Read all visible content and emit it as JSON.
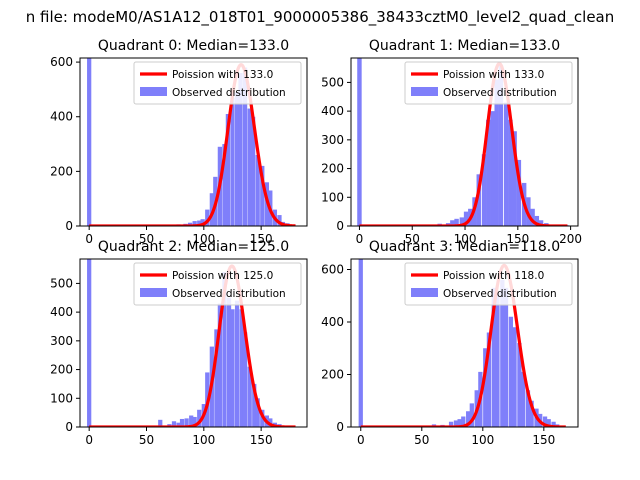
{
  "figure": {
    "title": "n file: modeM0/AS1A12_018T01_9000005386_38433cztM0_level2_quad_clean"
  },
  "colors": {
    "histogram": "#7f7ffa",
    "poisson": "#ff0000",
    "axes": "#000000"
  },
  "chart_data": [
    {
      "type": "bar",
      "title": "Quadrant 0: Median=133.0",
      "median": 133.0,
      "xlim": [
        -8,
        190
      ],
      "ylim": [
        0,
        615
      ],
      "xticks": [
        0,
        50,
        100,
        150
      ],
      "yticks": [
        0,
        200,
        400,
        600
      ],
      "legend": {
        "placement": "top-right",
        "entries": [
          "Poission with 133.0",
          "Observed distribution"
        ]
      },
      "poisson_peak": 590,
      "bin_width": 3.7,
      "bars": [
        [
          0,
          620
        ],
        [
          70,
          4
        ],
        [
          78,
          6
        ],
        [
          84,
          8
        ],
        [
          88,
          12
        ],
        [
          92,
          18
        ],
        [
          96,
          20
        ],
        [
          99,
          25
        ],
        [
          103,
          60
        ],
        [
          107,
          120
        ],
        [
          110,
          180
        ],
        [
          114,
          290
        ],
        [
          118,
          300
        ],
        [
          121,
          410
        ],
        [
          125,
          470
        ],
        [
          129,
          490
        ],
        [
          132,
          560
        ],
        [
          136,
          580
        ],
        [
          140,
          430
        ],
        [
          143,
          400
        ],
        [
          147,
          260
        ],
        [
          151,
          220
        ],
        [
          155,
          160
        ],
        [
          158,
          130
        ],
        [
          162,
          60
        ],
        [
          166,
          40
        ],
        [
          169,
          15
        ],
        [
          173,
          10
        ],
        [
          177,
          4
        ]
      ]
    },
    {
      "type": "bar",
      "title": "Quadrant 1: Median=133.0",
      "median": 133.0,
      "xlim": [
        -8,
        207
      ],
      "ylim": [
        0,
        585
      ],
      "xticks": [
        0,
        50,
        100,
        150,
        200
      ],
      "yticks": [
        0,
        100,
        200,
        300,
        400,
        500
      ],
      "legend": {
        "placement": "top-right",
        "entries": [
          "Poission with 133.0",
          "Observed distribution"
        ]
      },
      "poisson_peak": 565,
      "bin_width": 4.2,
      "bars": [
        [
          0,
          590
        ],
        [
          68,
          5
        ],
        [
          76,
          8
        ],
        [
          84,
          10
        ],
        [
          88,
          20
        ],
        [
          92,
          25
        ],
        [
          97,
          30
        ],
        [
          101,
          50
        ],
        [
          105,
          60
        ],
        [
          109,
          100
        ],
        [
          113,
          180
        ],
        [
          118,
          250
        ],
        [
          122,
          370
        ],
        [
          126,
          400
        ],
        [
          130,
          510
        ],
        [
          134,
          560
        ],
        [
          139,
          430
        ],
        [
          143,
          370
        ],
        [
          147,
          330
        ],
        [
          151,
          230
        ],
        [
          156,
          150
        ],
        [
          160,
          100
        ],
        [
          164,
          60
        ],
        [
          168,
          35
        ],
        [
          172,
          20
        ],
        [
          177,
          10
        ],
        [
          181,
          5
        ],
        [
          189,
          4
        ],
        [
          196,
          3
        ]
      ]
    },
    {
      "type": "bar",
      "title": "Quadrant 2: Median=125.0",
      "median": 125.0,
      "xlim": [
        -8,
        190
      ],
      "ylim": [
        0,
        585
      ],
      "xticks": [
        0,
        50,
        100,
        150
      ],
      "yticks": [
        0,
        100,
        200,
        300,
        400,
        500
      ],
      "legend": {
        "placement": "top-right",
        "entries": [
          "Poission with 125.0",
          "Observed distribution"
        ]
      },
      "poisson_peak": 560,
      "bin_width": 3.7,
      "bars": [
        [
          0,
          590
        ],
        [
          48,
          4
        ],
        [
          55,
          5
        ],
        [
          62,
          25
        ],
        [
          70,
          10
        ],
        [
          74,
          20
        ],
        [
          78,
          15
        ],
        [
          81,
          28
        ],
        [
          85,
          30
        ],
        [
          89,
          40
        ],
        [
          92,
          35
        ],
        [
          96,
          60
        ],
        [
          100,
          80
        ],
        [
          103,
          190
        ],
        [
          107,
          280
        ],
        [
          111,
          340
        ],
        [
          114,
          430
        ],
        [
          118,
          540
        ],
        [
          122,
          450
        ],
        [
          125,
          410
        ],
        [
          129,
          440
        ],
        [
          133,
          410
        ],
        [
          136,
          330
        ],
        [
          140,
          210
        ],
        [
          144,
          150
        ],
        [
          147,
          100
        ],
        [
          151,
          60
        ],
        [
          155,
          40
        ],
        [
          158,
          30
        ],
        [
          162,
          15
        ],
        [
          166,
          10
        ],
        [
          169,
          5
        ]
      ]
    },
    {
      "type": "bar",
      "title": "Quadrant 3: Median=118.0",
      "median": 118.0,
      "xlim": [
        -8,
        178
      ],
      "ylim": [
        0,
        640
      ],
      "xticks": [
        0,
        50,
        100,
        150
      ],
      "yticks": [
        0,
        200,
        400,
        600
      ],
      "legend": {
        "placement": "top-right",
        "entries": [
          "Poission with 118.0",
          "Observed distribution"
        ]
      },
      "poisson_peak": 615,
      "bin_width": 3.5,
      "bars": [
        [
          0,
          640
        ],
        [
          60,
          10
        ],
        [
          67,
          8
        ],
        [
          74,
          20
        ],
        [
          78,
          25
        ],
        [
          81,
          30
        ],
        [
          84,
          40
        ],
        [
          88,
          60
        ],
        [
          91,
          90
        ],
        [
          95,
          140
        ],
        [
          98,
          210
        ],
        [
          102,
          300
        ],
        [
          105,
          360
        ],
        [
          109,
          530
        ],
        [
          112,
          510
        ],
        [
          116,
          560
        ],
        [
          119,
          530
        ],
        [
          123,
          420
        ],
        [
          126,
          380
        ],
        [
          130,
          320
        ],
        [
          133,
          210
        ],
        [
          137,
          140
        ],
        [
          140,
          100
        ],
        [
          144,
          70
        ],
        [
          147,
          50
        ],
        [
          151,
          40
        ],
        [
          154,
          30
        ],
        [
          158,
          20
        ],
        [
          161,
          10
        ]
      ]
    }
  ]
}
